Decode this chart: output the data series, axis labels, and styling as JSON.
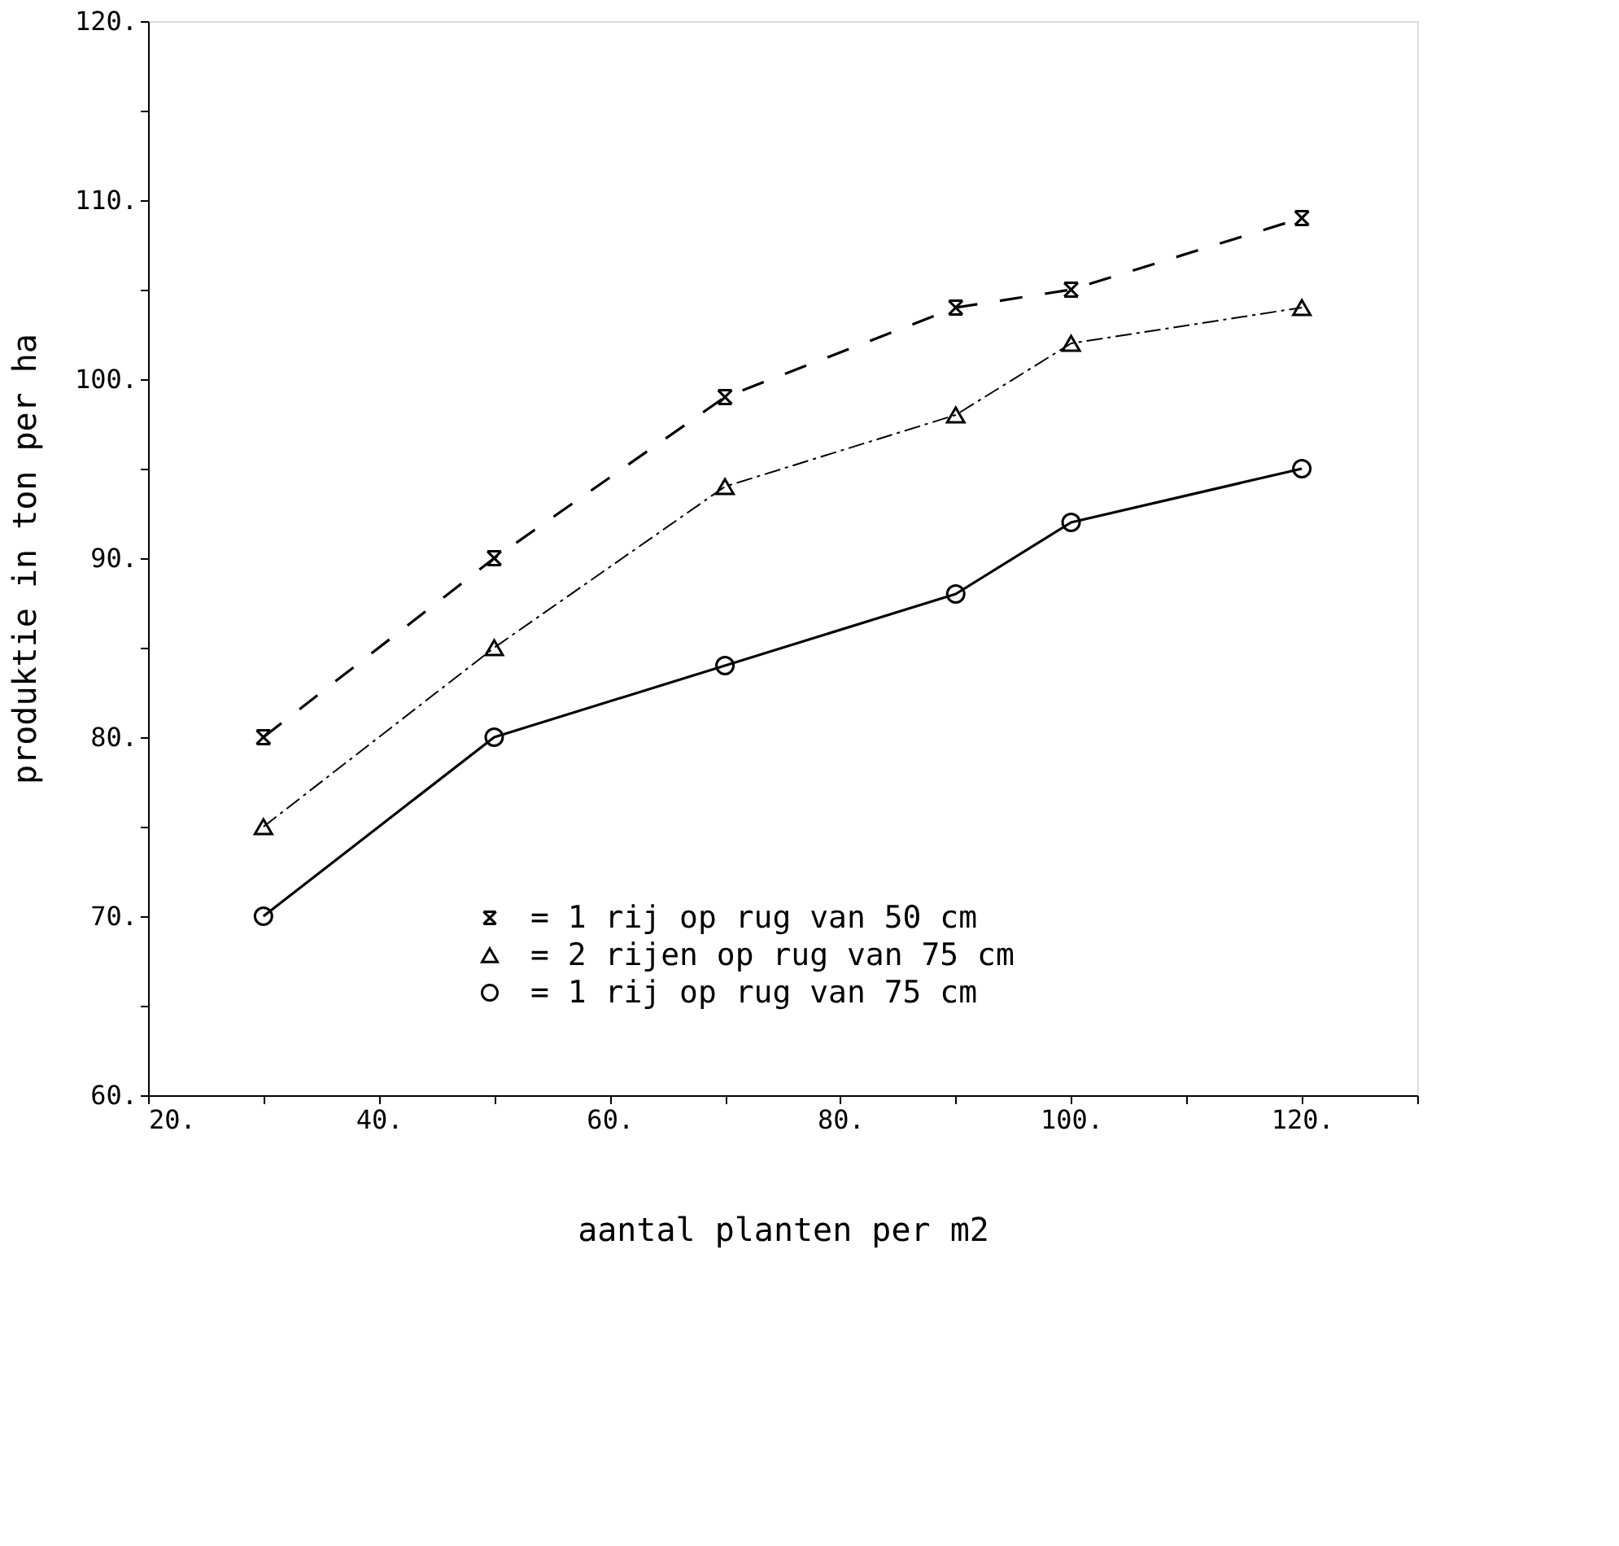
{
  "chart_data": {
    "type": "line",
    "xlabel": "aantal planten per m2",
    "ylabel": "produktie in ton per ha",
    "xlim": [
      20,
      130
    ],
    "ylim": [
      60,
      120
    ],
    "xticks": [
      {
        "value": 20,
        "label": "20."
      },
      {
        "value": 30,
        "label": null
      },
      {
        "value": 40,
        "label": "40."
      },
      {
        "value": 50,
        "label": null
      },
      {
        "value": 60,
        "label": "60."
      },
      {
        "value": 70,
        "label": null
      },
      {
        "value": 80,
        "label": "80."
      },
      {
        "value": 90,
        "label": null
      },
      {
        "value": 100,
        "label": "100."
      },
      {
        "value": 110,
        "label": null
      },
      {
        "value": 120,
        "label": "120."
      },
      {
        "value": 130,
        "label": null
      }
    ],
    "yticks": [
      {
        "value": 60,
        "label": "60."
      },
      {
        "value": 65,
        "label": null
      },
      {
        "value": 70,
        "label": "70."
      },
      {
        "value": 75,
        "label": null
      },
      {
        "value": 80,
        "label": "80."
      },
      {
        "value": 85,
        "label": null
      },
      {
        "value": 90,
        "label": "90."
      },
      {
        "value": 95,
        "label": null
      },
      {
        "value": 100,
        "label": "100."
      },
      {
        "value": 105,
        "label": null
      },
      {
        "value": 110,
        "label": "110."
      },
      {
        "value": 115,
        "label": null
      },
      {
        "value": 120,
        "label": "120."
      }
    ],
    "x": [
      30,
      50,
      70,
      90,
      100,
      120
    ],
    "grid": false,
    "legend": "bottom right",
    "series": [
      {
        "name": "= 1 rij op rug van 50 cm",
        "color": "#000000",
        "marker": "cross",
        "line_style": "dashed",
        "values": [
          80,
          90,
          99,
          104,
          105,
          109
        ]
      },
      {
        "name": "= 2 rijen op rug van 75 cm",
        "color": "#000000",
        "marker": "triangle",
        "line_style": "dotted",
        "values": [
          75,
          85,
          94,
          98,
          102,
          104
        ]
      },
      {
        "name": "= 1 rij op rug van 75 cm",
        "color": "#000000",
        "marker": "circle",
        "line_style": "solid",
        "values": [
          70,
          80,
          84,
          88,
          92,
          95
        ]
      }
    ]
  }
}
